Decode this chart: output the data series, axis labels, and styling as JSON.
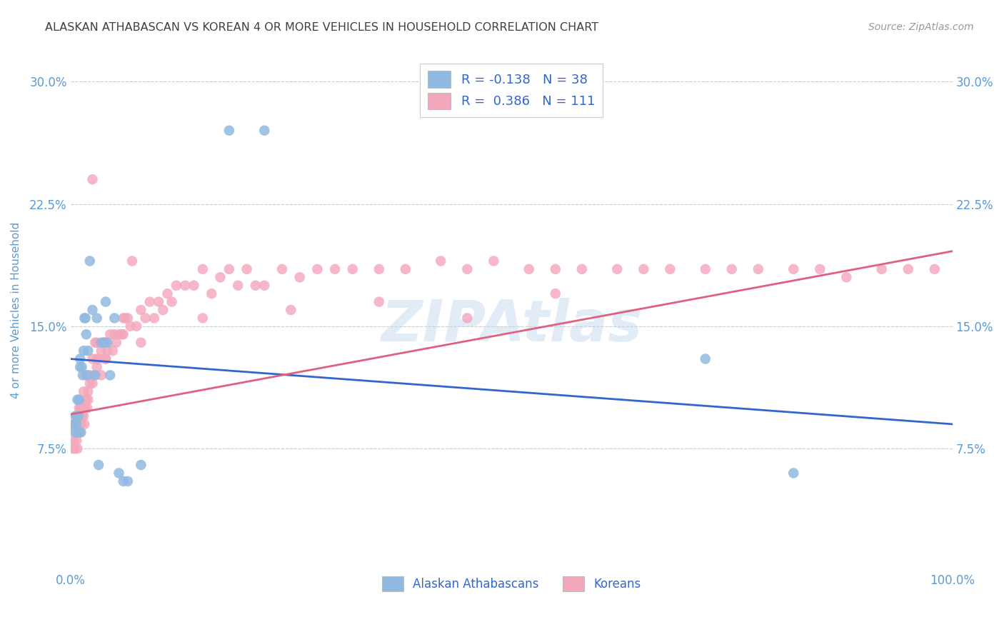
{
  "title": "ALASKAN ATHABASCAN VS KOREAN 4 OR MORE VEHICLES IN HOUSEHOLD CORRELATION CHART",
  "source": "Source: ZipAtlas.com",
  "ylabel": "4 or more Vehicles in Household",
  "xlim": [
    0.0,
    1.0
  ],
  "ylim": [
    0.0,
    0.32
  ],
  "xticks": [
    0.0,
    0.25,
    0.5,
    0.75,
    1.0
  ],
  "xtick_labels": [
    "0.0%",
    "",
    "",
    "",
    "100.0%"
  ],
  "yticks": [
    0.075,
    0.15,
    0.225,
    0.3
  ],
  "ytick_labels": [
    "7.5%",
    "15.0%",
    "22.5%",
    "30.0%"
  ],
  "legend_entries": [
    {
      "label": "R = -0.138   N = 38",
      "color": "#a8c4e0"
    },
    {
      "label": "R =  0.386   N = 111",
      "color": "#f4b8c8"
    }
  ],
  "bottom_legend": [
    {
      "label": "Alaskan Athabascans",
      "color": "#a8c4e0"
    },
    {
      "label": "Koreans",
      "color": "#f4b8c8"
    }
  ],
  "blue_scatter_x": [
    0.003,
    0.005,
    0.006,
    0.007,
    0.008,
    0.009,
    0.009,
    0.01,
    0.011,
    0.011,
    0.012,
    0.013,
    0.014,
    0.015,
    0.016,
    0.017,
    0.018,
    0.019,
    0.02,
    0.022,
    0.025,
    0.028,
    0.03,
    0.032,
    0.035,
    0.038,
    0.04,
    0.042,
    0.045,
    0.05,
    0.055,
    0.06,
    0.065,
    0.08,
    0.18,
    0.22,
    0.72,
    0.82
  ],
  "blue_scatter_y": [
    0.09,
    0.085,
    0.095,
    0.09,
    0.105,
    0.095,
    0.085,
    0.105,
    0.13,
    0.125,
    0.085,
    0.125,
    0.12,
    0.135,
    0.155,
    0.155,
    0.145,
    0.12,
    0.135,
    0.19,
    0.16,
    0.12,
    0.155,
    0.065,
    0.14,
    0.14,
    0.165,
    0.14,
    0.12,
    0.155,
    0.06,
    0.055,
    0.055,
    0.065,
    0.27,
    0.27,
    0.13,
    0.06
  ],
  "pink_scatter_x": [
    0.003,
    0.004,
    0.005,
    0.005,
    0.006,
    0.006,
    0.007,
    0.007,
    0.008,
    0.008,
    0.009,
    0.009,
    0.01,
    0.01,
    0.01,
    0.011,
    0.011,
    0.012,
    0.012,
    0.013,
    0.014,
    0.015,
    0.015,
    0.016,
    0.017,
    0.018,
    0.018,
    0.019,
    0.02,
    0.02,
    0.022,
    0.022,
    0.025,
    0.025,
    0.027,
    0.028,
    0.03,
    0.03,
    0.032,
    0.035,
    0.035,
    0.038,
    0.04,
    0.04,
    0.042,
    0.045,
    0.048,
    0.05,
    0.052,
    0.055,
    0.058,
    0.06,
    0.062,
    0.065,
    0.068,
    0.07,
    0.075,
    0.08,
    0.085,
    0.09,
    0.095,
    0.1,
    0.105,
    0.11,
    0.115,
    0.12,
    0.13,
    0.14,
    0.15,
    0.16,
    0.17,
    0.18,
    0.19,
    0.2,
    0.21,
    0.22,
    0.24,
    0.26,
    0.28,
    0.3,
    0.32,
    0.35,
    0.38,
    0.42,
    0.45,
    0.48,
    0.52,
    0.55,
    0.58,
    0.62,
    0.65,
    0.68,
    0.72,
    0.75,
    0.78,
    0.82,
    0.85,
    0.88,
    0.92,
    0.95,
    0.98,
    0.45,
    0.25,
    0.35,
    0.55,
    0.15,
    0.08,
    0.06,
    0.04,
    0.03,
    0.025
  ],
  "pink_scatter_y": [
    0.075,
    0.08,
    0.075,
    0.09,
    0.085,
    0.095,
    0.08,
    0.09,
    0.075,
    0.095,
    0.085,
    0.09,
    0.085,
    0.09,
    0.1,
    0.085,
    0.1,
    0.09,
    0.1,
    0.095,
    0.1,
    0.095,
    0.11,
    0.09,
    0.1,
    0.105,
    0.12,
    0.1,
    0.11,
    0.105,
    0.12,
    0.115,
    0.115,
    0.13,
    0.12,
    0.14,
    0.125,
    0.13,
    0.13,
    0.12,
    0.135,
    0.14,
    0.13,
    0.14,
    0.135,
    0.145,
    0.135,
    0.145,
    0.14,
    0.145,
    0.145,
    0.145,
    0.155,
    0.155,
    0.15,
    0.19,
    0.15,
    0.16,
    0.155,
    0.165,
    0.155,
    0.165,
    0.16,
    0.17,
    0.165,
    0.175,
    0.175,
    0.175,
    0.185,
    0.17,
    0.18,
    0.185,
    0.175,
    0.185,
    0.175,
    0.175,
    0.185,
    0.18,
    0.185,
    0.185,
    0.185,
    0.185,
    0.185,
    0.19,
    0.185,
    0.19,
    0.185,
    0.185,
    0.185,
    0.185,
    0.185,
    0.185,
    0.185,
    0.185,
    0.185,
    0.185,
    0.185,
    0.18,
    0.185,
    0.185,
    0.185,
    0.155,
    0.16,
    0.165,
    0.17,
    0.155,
    0.14,
    0.155,
    0.13,
    0.14,
    0.24
  ],
  "blue_line_x": [
    0.0,
    1.0
  ],
  "blue_line_y": [
    0.13,
    0.09
  ],
  "pink_line_x": [
    0.0,
    1.0
  ],
  "pink_line_y": [
    0.096,
    0.196
  ],
  "watermark": "ZIPAtlas",
  "background_color": "#ffffff",
  "grid_color": "#cccccc",
  "scatter_blue": "#91b9e0",
  "scatter_pink": "#f4a7bb",
  "line_blue": "#3366cc",
  "line_pink": "#e06080",
  "tick_label_color": "#5b9bd5",
  "axis_label_color": "#5b9bd5",
  "title_color": "#404040",
  "legend_text_color": "#3366cc"
}
